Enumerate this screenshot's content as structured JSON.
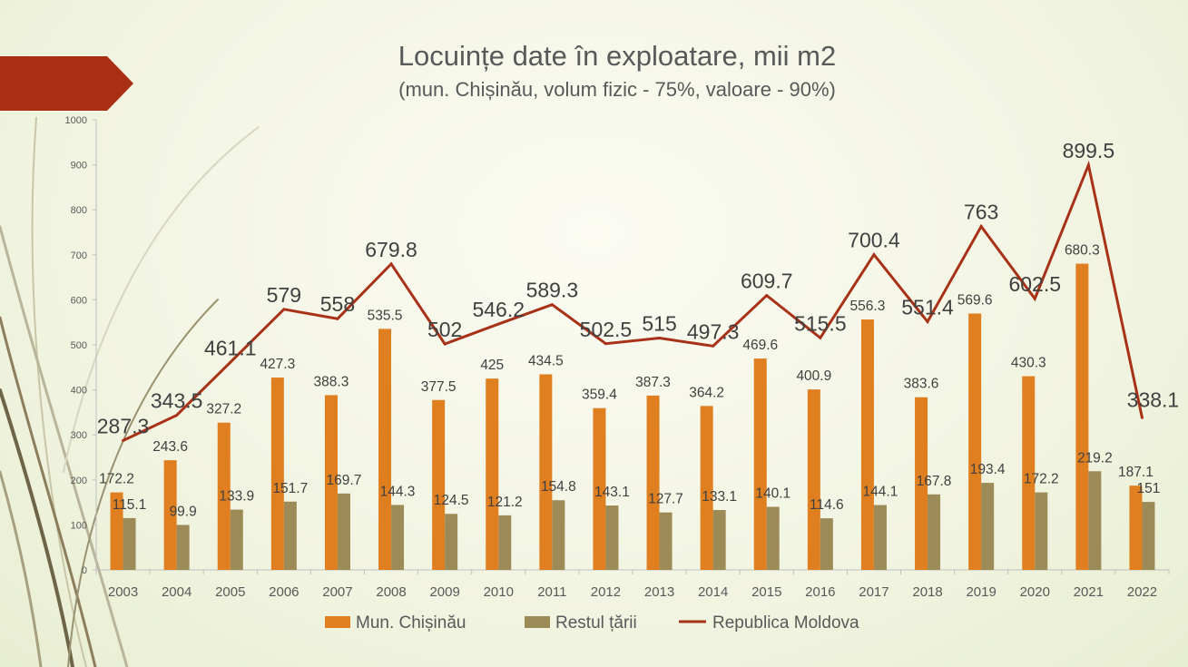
{
  "colors": {
    "chisinau": "#e07f1f",
    "restul": "#9c8a57",
    "moldova": "#a83218",
    "accent_banner": "#a82e14",
    "axis": "#bfbfbf"
  },
  "chart_data": {
    "type": "bar",
    "title": "Locuințe date în exploatare, mii m2",
    "subtitle": "(mun. Chișinău, volum fizic - 75%, valoare - 90%)",
    "ylim": [
      0,
      1000
    ],
    "yticks": [
      "0",
      "100",
      "200",
      "300",
      "400",
      "500",
      "600",
      "700",
      "800",
      "900",
      "1000"
    ],
    "grid": false,
    "legend_position": "bottom",
    "categories": [
      "2003",
      "2004",
      "2005",
      "2006",
      "2007",
      "2008",
      "2009",
      "2010",
      "2011",
      "2012",
      "2013",
      "2014",
      "2015",
      "2016",
      "2017",
      "2018",
      "2019",
      "2020",
      "2021",
      "2022"
    ],
    "series": [
      {
        "name": "Mun. Chișinău",
        "type": "bar",
        "values": [
          172.2,
          243.6,
          327.2,
          427.3,
          388.3,
          535.5,
          377.5,
          425,
          434.5,
          359.4,
          387.3,
          364.2,
          469.6,
          400.9,
          556.3,
          383.6,
          569.6,
          430.3,
          680.3,
          187.1
        ],
        "labels": [
          "172.2",
          "243.6",
          "327.2",
          "427.3",
          "388.3",
          "535.5",
          "377.5",
          "425",
          "434.5",
          "359.4",
          "387.3",
          "364.2",
          "469.6",
          "400.9",
          "556.3",
          "383.6",
          "569.6",
          "430.3",
          "680.3",
          "187.1"
        ]
      },
      {
        "name": "Restul țării",
        "type": "bar",
        "values": [
          115.1,
          99.9,
          133.9,
          151.7,
          169.7,
          144.3,
          124.5,
          121.2,
          154.8,
          143.1,
          127.7,
          133.1,
          140.1,
          114.6,
          144.1,
          167.8,
          193.4,
          172.2,
          219.2,
          151
        ],
        "labels": [
          "115.1",
          "99.9",
          "133.9",
          "151.7",
          "169.7",
          "144.3",
          "124.5",
          "121.2",
          "154.8",
          "143.1",
          "127.7",
          "133.1",
          "140.1",
          "114.6",
          "144.1",
          "167.8",
          "193.4",
          "172.2",
          "219.2",
          "151"
        ]
      },
      {
        "name": "Republica Moldova",
        "type": "line",
        "values": [
          287.3,
          343.5,
          461.1,
          579,
          558,
          679.8,
          502,
          546.2,
          589.3,
          502.5,
          515,
          497.3,
          609.7,
          515.5,
          700.4,
          551.4,
          763,
          602.5,
          899.5,
          338.1
        ],
        "labels": [
          "287.3",
          "343.5",
          "461.1",
          "579",
          "558",
          "679.8",
          "502",
          "546.2",
          "589.3",
          "502.5",
          "515",
          "497.3",
          "609.7",
          "515.5",
          "700.4",
          "551.4",
          "763",
          "602.5",
          "899.5",
          "338.1"
        ]
      }
    ]
  }
}
